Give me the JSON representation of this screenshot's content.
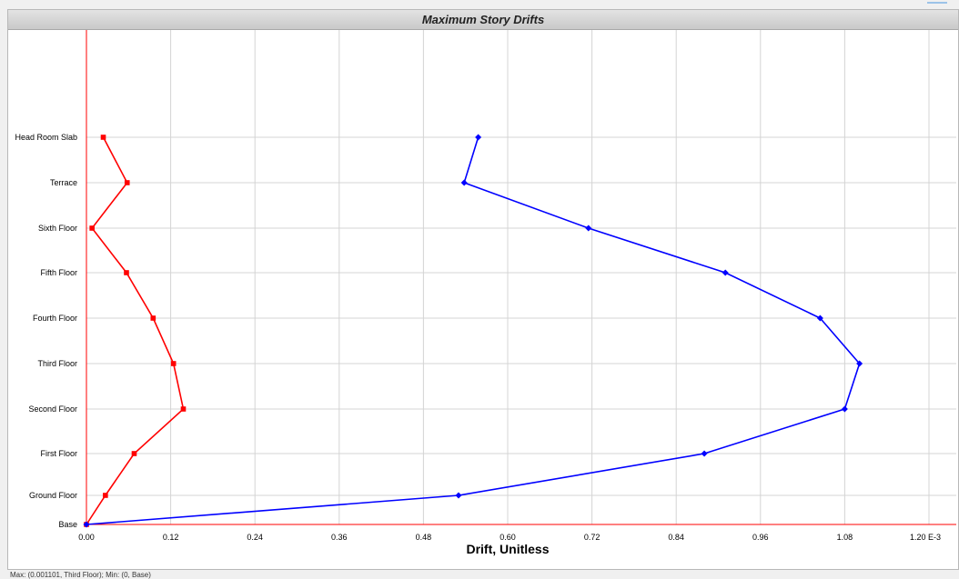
{
  "window": {
    "title": "Maximum Story Drifts"
  },
  "status_bar": {
    "text": "Max: (0.001101, Third Floor);   Min: (0, Base)"
  },
  "chart_data": {
    "type": "line",
    "title": "Maximum Story Drifts",
    "xlabel": "Drift, Unitless",
    "ylabel": "",
    "x_unit": "E-3",
    "xlim": [
      0,
      1.2
    ],
    "x_ticks": [
      "0.00",
      "0.12",
      "0.24",
      "0.36",
      "0.48",
      "0.60",
      "0.72",
      "0.84",
      "0.96",
      "1.08",
      "1.20 E-3"
    ],
    "categories": [
      "Base",
      "Ground Floor",
      "First Floor",
      "Second Floor",
      "Third Floor",
      "Fourth Floor",
      "Fifth Floor",
      "Sixth Floor",
      "Terrace",
      "Head Room Slab"
    ],
    "grid": true,
    "series": [
      {
        "color": "#ff0000",
        "marker": "square",
        "values": [
          0,
          0.027,
          0.068,
          0.138,
          0.124,
          0.095,
          0.057,
          0.008,
          0.058,
          0.024
        ]
      },
      {
        "color": "#0000ff",
        "marker": "diamond",
        "values": [
          0,
          0.53,
          0.88,
          1.08,
          1.101,
          1.045,
          0.91,
          0.715,
          0.538,
          0.558
        ]
      }
    ]
  }
}
